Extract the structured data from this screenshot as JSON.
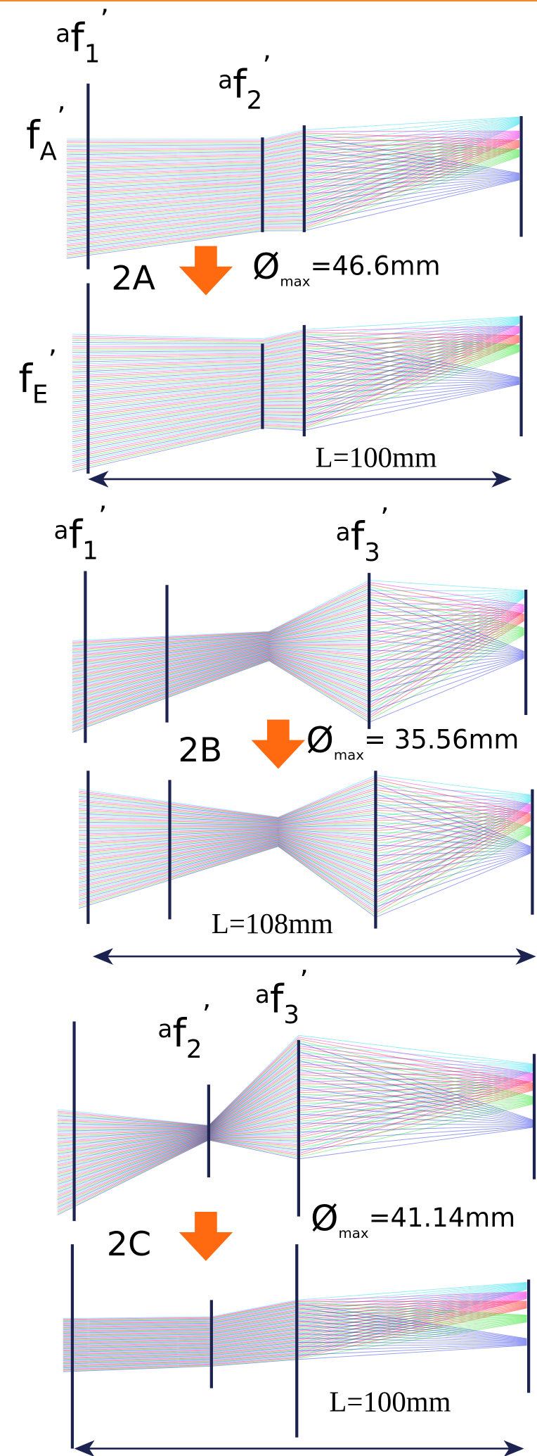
{
  "panels": [
    {
      "labels": [
        {
          "sup": "a",
          "base": "f",
          "sub": "1",
          "prime": "’"
        },
        {
          "sup": "a",
          "base": "f",
          "sub": "2",
          "prime": "’"
        },
        {
          "base": "f",
          "sub": "A",
          "prime": "’"
        },
        {
          "base": "f",
          "sub": "E",
          "prime": "’"
        }
      ],
      "id": "2A",
      "diameter": {
        "symbol": "Ø",
        "sub": "max",
        "value": "=46.6mm"
      },
      "length": "L=100mm"
    },
    {
      "labels": [
        {
          "sup": "a",
          "base": "f",
          "sub": "1",
          "prime": "’"
        },
        {
          "sup": "a",
          "base": "f",
          "sub": "3",
          "prime": "’"
        }
      ],
      "id": "2B",
      "diameter": {
        "symbol": "Ø",
        "sub": "max",
        "value": "= 35.56mm"
      },
      "length": "L=108mm"
    },
    {
      "labels": [
        {
          "sup": "a",
          "base": "f",
          "sub": "2",
          "prime": "’"
        },
        {
          "sup": "a",
          "base": "f",
          "sub": "3",
          "prime": "’"
        }
      ],
      "id": "2C",
      "diameter": {
        "symbol": "Ø",
        "sub": "max",
        "value": "=41.14mm"
      },
      "length": "L=100mm"
    }
  ]
}
